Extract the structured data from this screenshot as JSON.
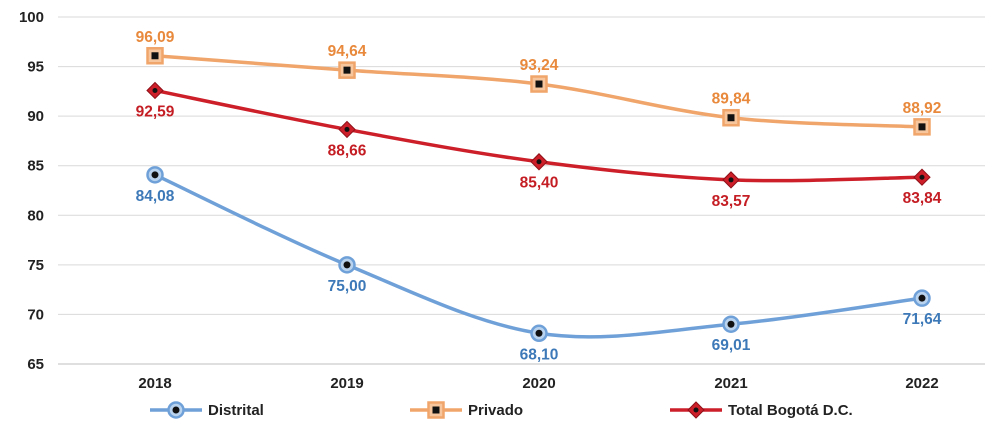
{
  "chart_data": {
    "type": "line",
    "title": "",
    "xlabel": "",
    "ylabel": "",
    "categories": [
      "2018",
      "2019",
      "2020",
      "2021",
      "2022"
    ],
    "ylim": [
      65,
      100
    ],
    "yticks": [
      65,
      70,
      75,
      80,
      85,
      90,
      95,
      100
    ],
    "grid": "horizontal",
    "legend_position": "bottom",
    "series": [
      {
        "name": "Distrital",
        "values": [
          84.08,
          75.0,
          68.1,
          69.01,
          71.64
        ],
        "labels": [
          "84,08",
          "75,00",
          "68,10",
          "69,01",
          "71,64"
        ],
        "label_position": [
          "below",
          "below",
          "below",
          "below",
          "below"
        ],
        "color": "#6fa1d8",
        "label_color": "#3d79b8",
        "marker": "circle"
      },
      {
        "name": "Privado",
        "values": [
          96.09,
          94.64,
          93.24,
          89.84,
          88.92
        ],
        "labels": [
          "96,09",
          "94,64",
          "93,24",
          "89,84",
          "88,92"
        ],
        "label_position": [
          "above",
          "above",
          "above",
          "above",
          "above"
        ],
        "color": "#f0a56a",
        "label_color": "#e8893c",
        "marker": "square"
      },
      {
        "name": "Total Bogotá D.C.",
        "values": [
          92.59,
          88.66,
          85.4,
          83.57,
          83.84
        ],
        "labels": [
          "92,59",
          "88,66",
          "85,40",
          "83,57",
          "83,84"
        ],
        "label_position": [
          "below",
          "below",
          "below",
          "below",
          "below"
        ],
        "color": "#cc1f2a",
        "label_color": "#c41e24",
        "marker": "diamond"
      }
    ]
  }
}
